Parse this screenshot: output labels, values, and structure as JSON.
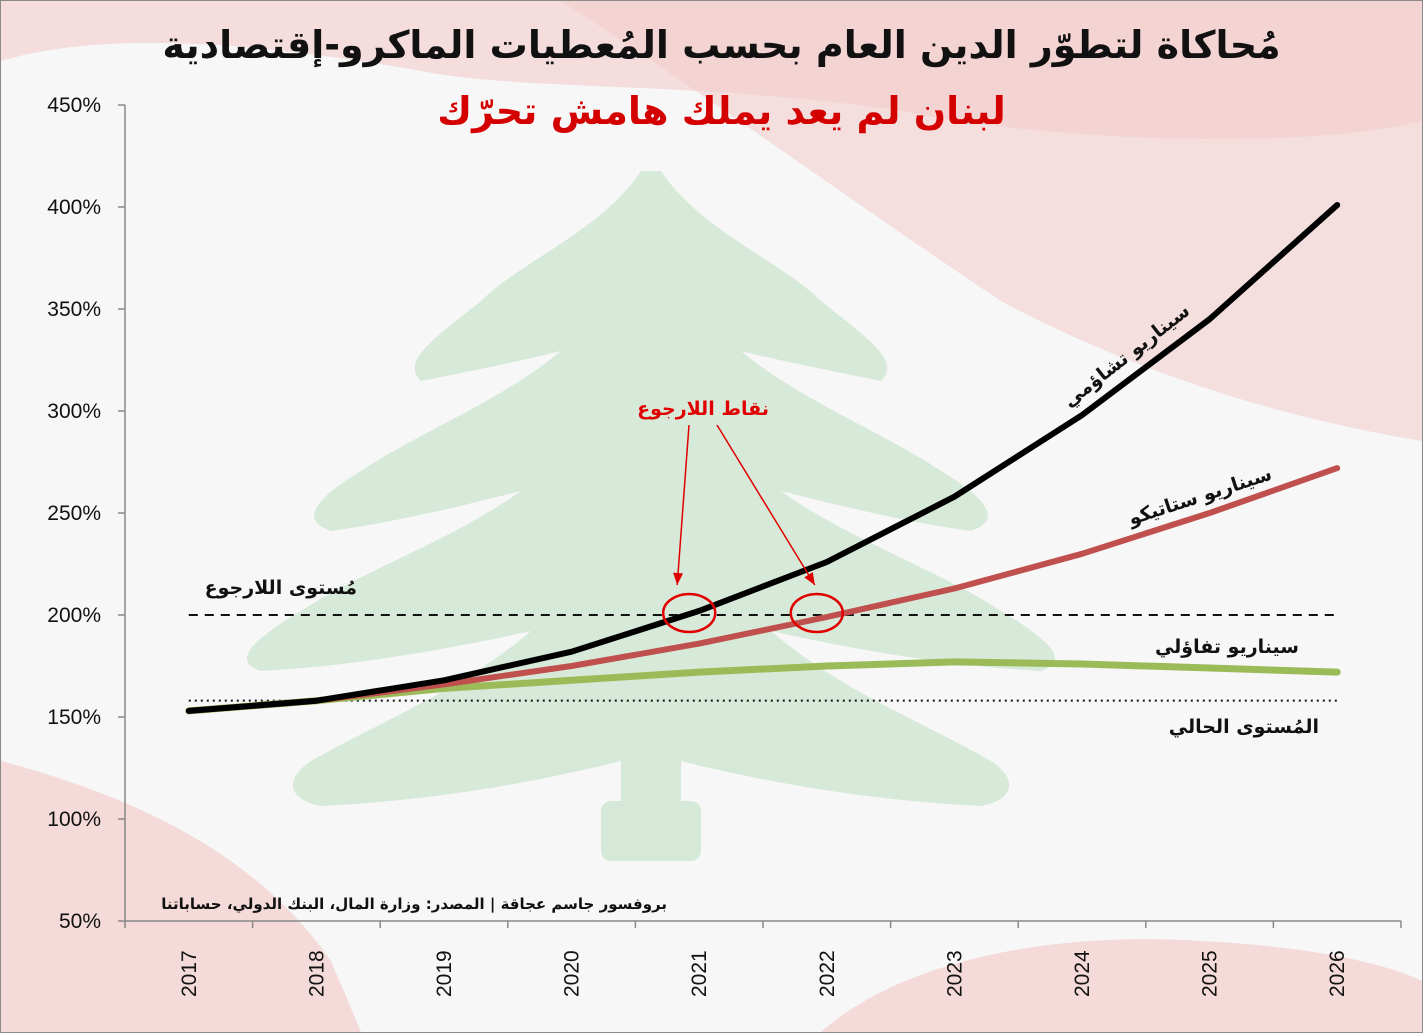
{
  "title": "مُحاكاة لتطوّر الدين العام بحسب المُعطيات الماكرو-إقتصادية",
  "subtitle": "لبنان لم يعد يملك هامش تحرّك",
  "source": "بروفسور جاسم عجاقة | المصدر: وزارة المال، البنك الدولي، حساباتنا",
  "colors": {
    "pessimistic": "#000000",
    "status_quo": "#c0504d",
    "optimistic": "#9bbb59",
    "highlight": "#e00000"
  },
  "chart_data": {
    "type": "line",
    "x": [
      "2017",
      "2018",
      "2019",
      "2020",
      "2021",
      "2022",
      "2023",
      "2024",
      "2025",
      "2026"
    ],
    "ylim": [
      50,
      450
    ],
    "yticks": [
      "50%",
      "100%",
      "150%",
      "200%",
      "250%",
      "300%",
      "350%",
      "400%",
      "450%"
    ],
    "ytick_values": [
      50,
      100,
      150,
      200,
      250,
      300,
      350,
      400,
      450
    ],
    "grid": false,
    "series": [
      {
        "name": "سيناريو تشاؤمي",
        "values": [
          153,
          158,
          168,
          182,
          202,
          226,
          258,
          298,
          345,
          401
        ]
      },
      {
        "name": "سيناريو ستاتيكو",
        "values": [
          153,
          158,
          166,
          175,
          186,
          199,
          213,
          230,
          250,
          272
        ]
      },
      {
        "name": "سيناريو تفاؤلي",
        "values": [
          153,
          158,
          164,
          168,
          172,
          175,
          177,
          176,
          174,
          172
        ]
      }
    ],
    "reference_lines": [
      {
        "name": "مُستوى اللارجوع",
        "value": 200,
        "style": "dashed"
      },
      {
        "name": "المُستوى الحالي",
        "value": 158,
        "style": "dotted"
      }
    ],
    "annotations": [
      {
        "text": "نقاط اللارجوع",
        "points": [
          {
            "x": "2021",
            "y": 200
          },
          {
            "x": "2022",
            "y": 200
          }
        ]
      }
    ]
  }
}
